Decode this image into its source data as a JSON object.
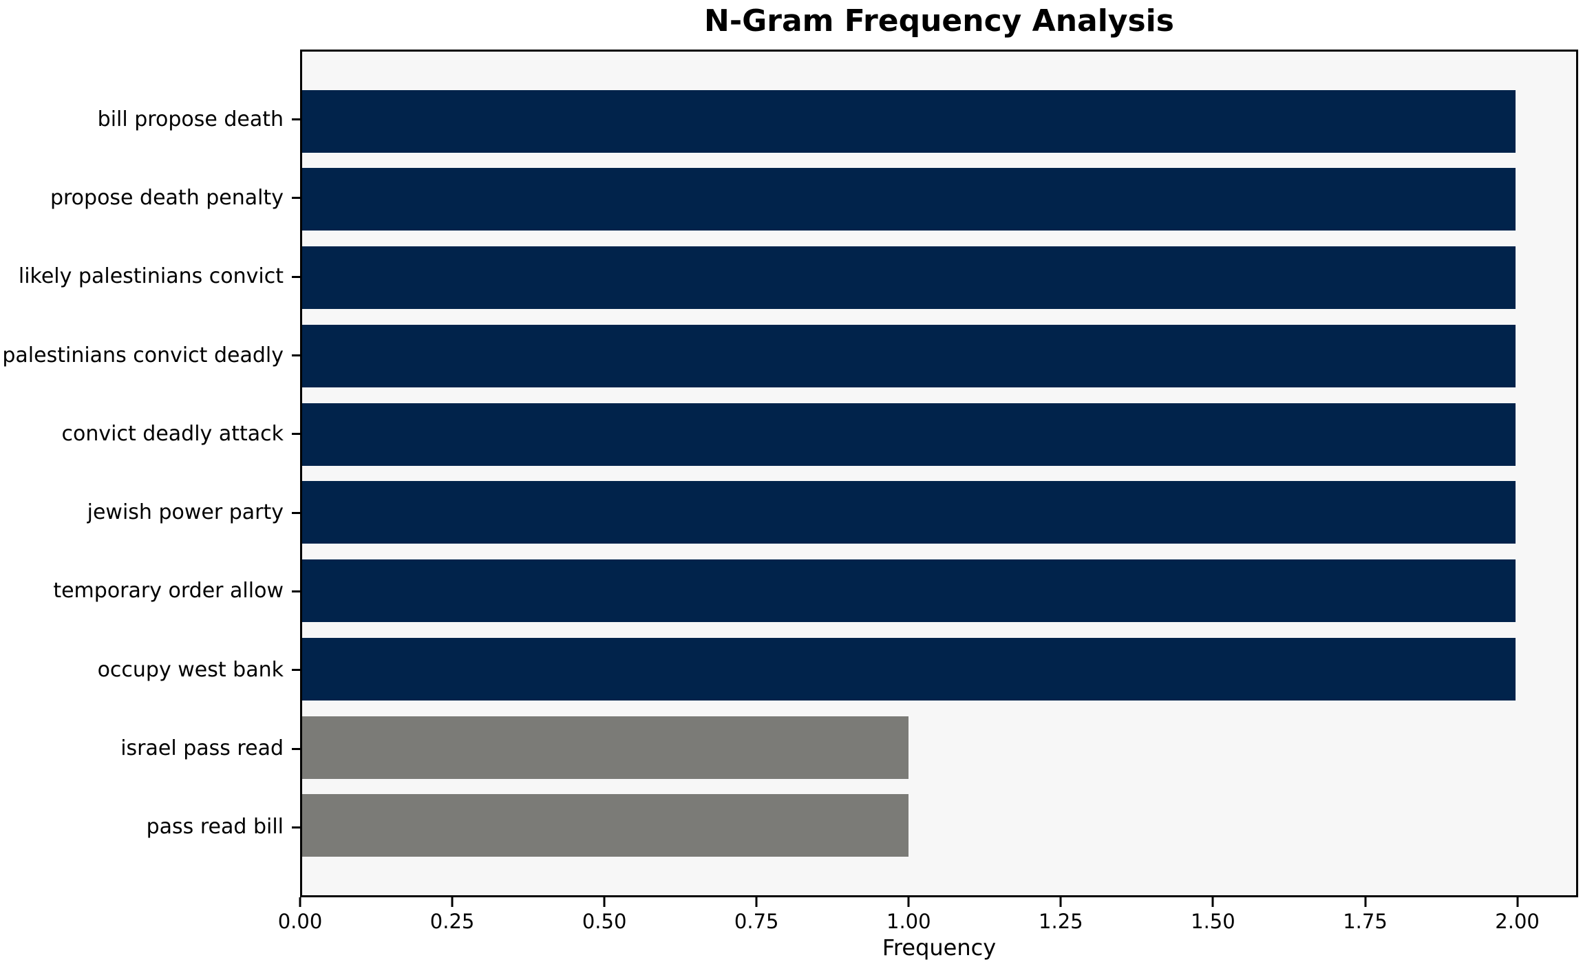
{
  "chart_data": {
    "type": "bar",
    "orientation": "horizontal",
    "title": "N-Gram Frequency Analysis",
    "xlabel": "Frequency",
    "ylabel": "",
    "categories": [
      "bill propose death",
      "propose death penalty",
      "likely palestinians convict",
      "palestinians convict deadly",
      "convict deadly attack",
      "jewish power party",
      "temporary order allow",
      "occupy west bank",
      "israel pass read",
      "pass read bill"
    ],
    "values": [
      2,
      2,
      2,
      2,
      2,
      2,
      2,
      2,
      1,
      1
    ],
    "bar_colors": [
      "#01234b",
      "#01234b",
      "#01234b",
      "#01234b",
      "#01234b",
      "#01234b",
      "#01234b",
      "#01234b",
      "#7b7b77",
      "#7b7b77"
    ],
    "xlim": [
      0,
      2.1
    ],
    "xticks": [
      0,
      0.25,
      0.5,
      0.75,
      1.0,
      1.25,
      1.5,
      1.75,
      2.0
    ],
    "xtick_labels": [
      "0.00",
      "0.25",
      "0.50",
      "0.75",
      "1.00",
      "1.25",
      "1.50",
      "1.75",
      "2.00"
    ],
    "grid": false,
    "legend": null,
    "colors": {
      "highlight_bar": "#01234b",
      "default_bar": "#7b7b77",
      "plot_background": "#f7f7f7",
      "figure_background": "#ffffff",
      "spine": "#000000",
      "text": "#000000"
    }
  }
}
